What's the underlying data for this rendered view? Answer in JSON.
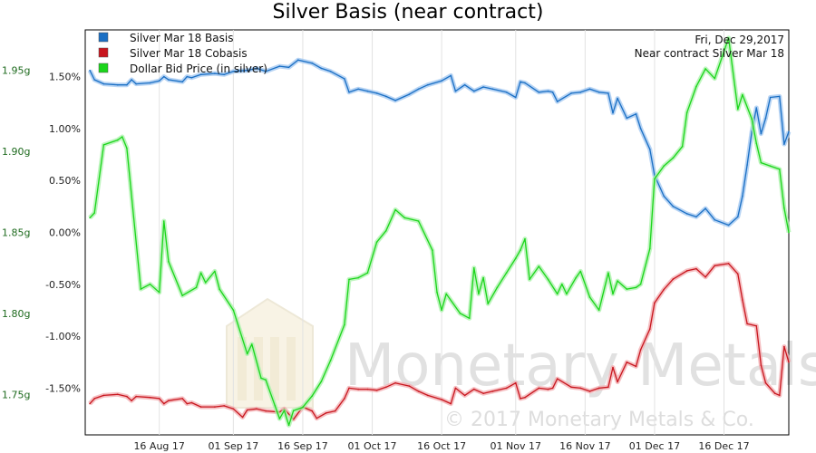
{
  "chart_data": {
    "type": "line",
    "title": "Silver Basis (near contract)",
    "annotation": [
      "Fri, Dec 29,2017",
      "Near contract Silver Mar 18"
    ],
    "watermark": {
      "name": "Monetary Metals",
      "copyright": "© 2017 Monetary Metals & Co."
    },
    "x_ticks": [
      "16 Aug 17",
      "01 Sep 17",
      "16 Sep 17",
      "01 Oct 17",
      "16 Oct 17",
      "01 Nov 17",
      "16 Nov 17",
      "01 Dec 17",
      "16 Dec 17"
    ],
    "y_left": {
      "ticks": [
        "1.50%",
        "1.00%",
        "0.50%",
        "0.00%",
        "-0.50%",
        "-1.00%",
        "-1.50%"
      ],
      "ylim": [
        -1.95,
        1.95
      ]
    },
    "y_right": {
      "ticks": [
        "1.95g",
        "1.90g",
        "1.85g",
        "1.80g",
        "1.75g"
      ],
      "ylim": [
        1.725,
        1.975
      ]
    },
    "grid": "vertical",
    "legend_position": "top-left",
    "series": [
      {
        "name": "Silver Mar 18 Basis",
        "color": "#1a6fc4",
        "glow": "#9fc6f0",
        "axis": "left",
        "points": [
          [
            "2017-08-01",
            1.56
          ],
          [
            "2017-08-02",
            1.47
          ],
          [
            "2017-08-04",
            1.43
          ],
          [
            "2017-08-07",
            1.42
          ],
          [
            "2017-08-09",
            1.42
          ],
          [
            "2017-08-10",
            1.47
          ],
          [
            "2017-08-11",
            1.43
          ],
          [
            "2017-08-14",
            1.44
          ],
          [
            "2017-08-16",
            1.46
          ],
          [
            "2017-08-17",
            1.5
          ],
          [
            "2017-08-18",
            1.47
          ],
          [
            "2017-08-21",
            1.45
          ],
          [
            "2017-08-22",
            1.5
          ],
          [
            "2017-08-23",
            1.49
          ],
          [
            "2017-08-25",
            1.52
          ],
          [
            "2017-08-28",
            1.53
          ],
          [
            "2017-08-30",
            1.52
          ],
          [
            "2017-09-01",
            1.55
          ],
          [
            "2017-09-04",
            1.56
          ],
          [
            "2017-09-06",
            1.58
          ],
          [
            "2017-09-08",
            1.55
          ],
          [
            "2017-09-11",
            1.6
          ],
          [
            "2017-09-13",
            1.59
          ],
          [
            "2017-09-15",
            1.66
          ],
          [
            "2017-09-18",
            1.63
          ],
          [
            "2017-09-20",
            1.58
          ],
          [
            "2017-09-22",
            1.55
          ],
          [
            "2017-09-25",
            1.48
          ],
          [
            "2017-09-26",
            1.35
          ],
          [
            "2017-09-28",
            1.38
          ],
          [
            "2017-09-30",
            1.36
          ],
          [
            "2017-10-02",
            1.34
          ],
          [
            "2017-10-04",
            1.31
          ],
          [
            "2017-10-06",
            1.27
          ],
          [
            "2017-10-09",
            1.33
          ],
          [
            "2017-10-11",
            1.38
          ],
          [
            "2017-10-13",
            1.42
          ],
          [
            "2017-10-16",
            1.46
          ],
          [
            "2017-10-18",
            1.51
          ],
          [
            "2017-10-19",
            1.36
          ],
          [
            "2017-10-21",
            1.42
          ],
          [
            "2017-10-23",
            1.36
          ],
          [
            "2017-10-25",
            1.4
          ],
          [
            "2017-10-27",
            1.38
          ],
          [
            "2017-10-30",
            1.35
          ],
          [
            "2017-11-01",
            1.3
          ],
          [
            "2017-11-02",
            1.45
          ],
          [
            "2017-11-03",
            1.44
          ],
          [
            "2017-11-06",
            1.35
          ],
          [
            "2017-11-08",
            1.36
          ],
          [
            "2017-11-09",
            1.35
          ],
          [
            "2017-11-10",
            1.26
          ],
          [
            "2017-11-13",
            1.34
          ],
          [
            "2017-11-15",
            1.35
          ],
          [
            "2017-11-17",
            1.38
          ],
          [
            "2017-11-19",
            1.35
          ],
          [
            "2017-11-21",
            1.34
          ],
          [
            "2017-11-22",
            1.15
          ],
          [
            "2017-11-23",
            1.29
          ],
          [
            "2017-11-25",
            1.1
          ],
          [
            "2017-11-27",
            1.14
          ],
          [
            "2017-11-28",
            1.0
          ],
          [
            "2017-11-30",
            0.8
          ],
          [
            "2017-12-01",
            0.55
          ],
          [
            "2017-12-03",
            0.35
          ],
          [
            "2017-12-05",
            0.25
          ],
          [
            "2017-12-08",
            0.18
          ],
          [
            "2017-12-10",
            0.15
          ],
          [
            "2017-12-12",
            0.23
          ],
          [
            "2017-12-14",
            0.12
          ],
          [
            "2017-12-17",
            0.07
          ],
          [
            "2017-12-19",
            0.15
          ],
          [
            "2017-12-20",
            0.35
          ],
          [
            "2017-12-21",
            0.65
          ],
          [
            "2017-12-22",
            0.97
          ],
          [
            "2017-12-23",
            1.2
          ],
          [
            "2017-12-24",
            0.95
          ],
          [
            "2017-12-25",
            1.1
          ],
          [
            "2017-12-26",
            1.3
          ],
          [
            "2017-12-28",
            1.31
          ],
          [
            "2017-12-29",
            0.85
          ],
          [
            "2017-12-30",
            0.97
          ]
        ]
      },
      {
        "name": "Silver Mar 18 Cobasis",
        "color": "#c8161e",
        "glow": "#f2a9ad",
        "axis": "left",
        "points": [
          [
            "2017-08-01",
            -1.65
          ],
          [
            "2017-08-02",
            -1.6
          ],
          [
            "2017-08-04",
            -1.57
          ],
          [
            "2017-08-07",
            -1.56
          ],
          [
            "2017-08-09",
            -1.58
          ],
          [
            "2017-08-10",
            -1.62
          ],
          [
            "2017-08-11",
            -1.58
          ],
          [
            "2017-08-14",
            -1.59
          ],
          [
            "2017-08-16",
            -1.6
          ],
          [
            "2017-08-17",
            -1.65
          ],
          [
            "2017-08-18",
            -1.62
          ],
          [
            "2017-08-21",
            -1.6
          ],
          [
            "2017-08-22",
            -1.65
          ],
          [
            "2017-08-23",
            -1.64
          ],
          [
            "2017-08-25",
            -1.68
          ],
          [
            "2017-08-28",
            -1.68
          ],
          [
            "2017-08-30",
            -1.67
          ],
          [
            "2017-09-01",
            -1.7
          ],
          [
            "2017-09-03",
            -1.78
          ],
          [
            "2017-09-04",
            -1.71
          ],
          [
            "2017-09-06",
            -1.7
          ],
          [
            "2017-09-08",
            -1.72
          ],
          [
            "2017-09-11",
            -1.73
          ],
          [
            "2017-09-12",
            -1.7
          ],
          [
            "2017-09-14",
            -1.8
          ],
          [
            "2017-09-16",
            -1.68
          ],
          [
            "2017-09-18",
            -1.72
          ],
          [
            "2017-09-19",
            -1.79
          ],
          [
            "2017-09-21",
            -1.74
          ],
          [
            "2017-09-23",
            -1.72
          ],
          [
            "2017-09-25",
            -1.6
          ],
          [
            "2017-09-26",
            -1.5
          ],
          [
            "2017-09-28",
            -1.51
          ],
          [
            "2017-09-30",
            -1.51
          ],
          [
            "2017-10-02",
            -1.52
          ],
          [
            "2017-10-04",
            -1.49
          ],
          [
            "2017-10-06",
            -1.45
          ],
          [
            "2017-10-09",
            -1.48
          ],
          [
            "2017-10-11",
            -1.53
          ],
          [
            "2017-10-13",
            -1.57
          ],
          [
            "2017-10-16",
            -1.61
          ],
          [
            "2017-10-18",
            -1.65
          ],
          [
            "2017-10-19",
            -1.5
          ],
          [
            "2017-10-21",
            -1.57
          ],
          [
            "2017-10-23",
            -1.51
          ],
          [
            "2017-10-25",
            -1.55
          ],
          [
            "2017-10-27",
            -1.53
          ],
          [
            "2017-10-30",
            -1.5
          ],
          [
            "2017-11-01",
            -1.45
          ],
          [
            "2017-11-02",
            -1.6
          ],
          [
            "2017-11-03",
            -1.59
          ],
          [
            "2017-11-06",
            -1.5
          ],
          [
            "2017-11-08",
            -1.51
          ],
          [
            "2017-11-09",
            -1.5
          ],
          [
            "2017-11-10",
            -1.41
          ],
          [
            "2017-11-13",
            -1.49
          ],
          [
            "2017-11-15",
            -1.5
          ],
          [
            "2017-11-17",
            -1.53
          ],
          [
            "2017-11-19",
            -1.5
          ],
          [
            "2017-11-21",
            -1.49
          ],
          [
            "2017-11-22",
            -1.3
          ],
          [
            "2017-11-23",
            -1.44
          ],
          [
            "2017-11-25",
            -1.25
          ],
          [
            "2017-11-27",
            -1.29
          ],
          [
            "2017-11-28",
            -1.13
          ],
          [
            "2017-11-30",
            -0.93
          ],
          [
            "2017-12-01",
            -0.68
          ],
          [
            "2017-12-03",
            -0.55
          ],
          [
            "2017-12-05",
            -0.45
          ],
          [
            "2017-12-08",
            -0.37
          ],
          [
            "2017-12-10",
            -0.35
          ],
          [
            "2017-12-12",
            -0.43
          ],
          [
            "2017-12-14",
            -0.32
          ],
          [
            "2017-12-17",
            -0.3
          ],
          [
            "2017-12-19",
            -0.4
          ],
          [
            "2017-12-20",
            -0.65
          ],
          [
            "2017-12-21",
            -0.88
          ],
          [
            "2017-12-23",
            -0.9
          ],
          [
            "2017-12-24",
            -1.28
          ],
          [
            "2017-12-25",
            -1.45
          ],
          [
            "2017-12-27",
            -1.55
          ],
          [
            "2017-12-28",
            -1.57
          ],
          [
            "2017-12-29",
            -1.1
          ],
          [
            "2017-12-30",
            -1.25
          ]
        ]
      },
      {
        "name": "Dollar Bid Price (in silver)",
        "color": "#1bd51b",
        "glow": "#a8f2a8",
        "axis": "right",
        "points": [
          [
            "2017-08-01",
            1.859
          ],
          [
            "2017-08-02",
            1.862
          ],
          [
            "2017-08-04",
            1.904
          ],
          [
            "2017-08-07",
            1.907
          ],
          [
            "2017-08-08",
            1.909
          ],
          [
            "2017-08-09",
            1.902
          ],
          [
            "2017-08-12",
            1.815
          ],
          [
            "2017-08-14",
            1.818
          ],
          [
            "2017-08-16",
            1.813
          ],
          [
            "2017-08-17",
            1.857
          ],
          [
            "2017-08-18",
            1.832
          ],
          [
            "2017-08-21",
            1.811
          ],
          [
            "2017-08-24",
            1.816
          ],
          [
            "2017-08-25",
            1.825
          ],
          [
            "2017-08-26",
            1.819
          ],
          [
            "2017-08-28",
            1.826
          ],
          [
            "2017-08-29",
            1.815
          ],
          [
            "2017-09-01",
            1.802
          ],
          [
            "2017-09-04",
            1.775
          ],
          [
            "2017-09-05",
            1.781
          ],
          [
            "2017-09-07",
            1.76
          ],
          [
            "2017-09-08",
            1.759
          ],
          [
            "2017-09-10",
            1.743
          ],
          [
            "2017-09-11",
            1.735
          ],
          [
            "2017-09-12",
            1.74
          ],
          [
            "2017-09-13",
            1.731
          ],
          [
            "2017-09-14",
            1.74
          ],
          [
            "2017-09-16",
            1.742
          ],
          [
            "2017-09-18",
            1.749
          ],
          [
            "2017-09-20",
            1.758
          ],
          [
            "2017-09-22",
            1.771
          ],
          [
            "2017-09-25",
            1.793
          ],
          [
            "2017-09-26",
            1.821
          ],
          [
            "2017-09-28",
            1.822
          ],
          [
            "2017-09-30",
            1.825
          ],
          [
            "2017-10-02",
            1.844
          ],
          [
            "2017-10-04",
            1.851
          ],
          [
            "2017-10-06",
            1.864
          ],
          [
            "2017-10-08",
            1.859
          ],
          [
            "2017-10-11",
            1.857
          ],
          [
            "2017-10-14",
            1.839
          ],
          [
            "2017-10-15",
            1.813
          ],
          [
            "2017-10-16",
            1.802
          ],
          [
            "2017-10-17",
            1.812
          ],
          [
            "2017-10-20",
            1.8
          ],
          [
            "2017-10-22",
            1.797
          ],
          [
            "2017-10-23",
            1.828
          ],
          [
            "2017-10-24",
            1.812
          ],
          [
            "2017-10-25",
            1.822
          ],
          [
            "2017-10-26",
            1.806
          ],
          [
            "2017-10-28",
            1.816
          ],
          [
            "2017-10-30",
            1.825
          ],
          [
            "2017-11-01",
            1.834
          ],
          [
            "2017-11-02",
            1.839
          ],
          [
            "2017-11-03",
            1.846
          ],
          [
            "2017-11-04",
            1.821
          ],
          [
            "2017-11-06",
            1.829
          ],
          [
            "2017-11-08",
            1.821
          ],
          [
            "2017-11-10",
            1.812
          ],
          [
            "2017-11-11",
            1.818
          ],
          [
            "2017-11-12",
            1.812
          ],
          [
            "2017-11-14",
            1.822
          ],
          [
            "2017-11-15",
            1.826
          ],
          [
            "2017-11-17",
            1.81
          ],
          [
            "2017-11-19",
            1.802
          ],
          [
            "2017-11-21",
            1.825
          ],
          [
            "2017-11-22",
            1.812
          ],
          [
            "2017-11-23",
            1.82
          ],
          [
            "2017-11-25",
            1.815
          ],
          [
            "2017-11-27",
            1.816
          ],
          [
            "2017-11-28",
            1.818
          ],
          [
            "2017-11-30",
            1.84
          ],
          [
            "2017-12-01",
            1.883
          ],
          [
            "2017-12-03",
            1.891
          ],
          [
            "2017-12-05",
            1.896
          ],
          [
            "2017-12-07",
            1.903
          ],
          [
            "2017-12-08",
            1.924
          ],
          [
            "2017-12-10",
            1.94
          ],
          [
            "2017-12-12",
            1.951
          ],
          [
            "2017-12-14",
            1.945
          ],
          [
            "2017-12-17",
            1.97
          ],
          [
            "2017-12-19",
            1.926
          ],
          [
            "2017-12-20",
            1.935
          ],
          [
            "2017-12-22",
            1.92
          ],
          [
            "2017-12-23",
            1.905
          ],
          [
            "2017-12-24",
            1.893
          ],
          [
            "2017-12-26",
            1.891
          ],
          [
            "2017-12-28",
            1.889
          ],
          [
            "2017-12-29",
            1.865
          ],
          [
            "2017-12-30",
            1.85
          ]
        ]
      }
    ]
  }
}
